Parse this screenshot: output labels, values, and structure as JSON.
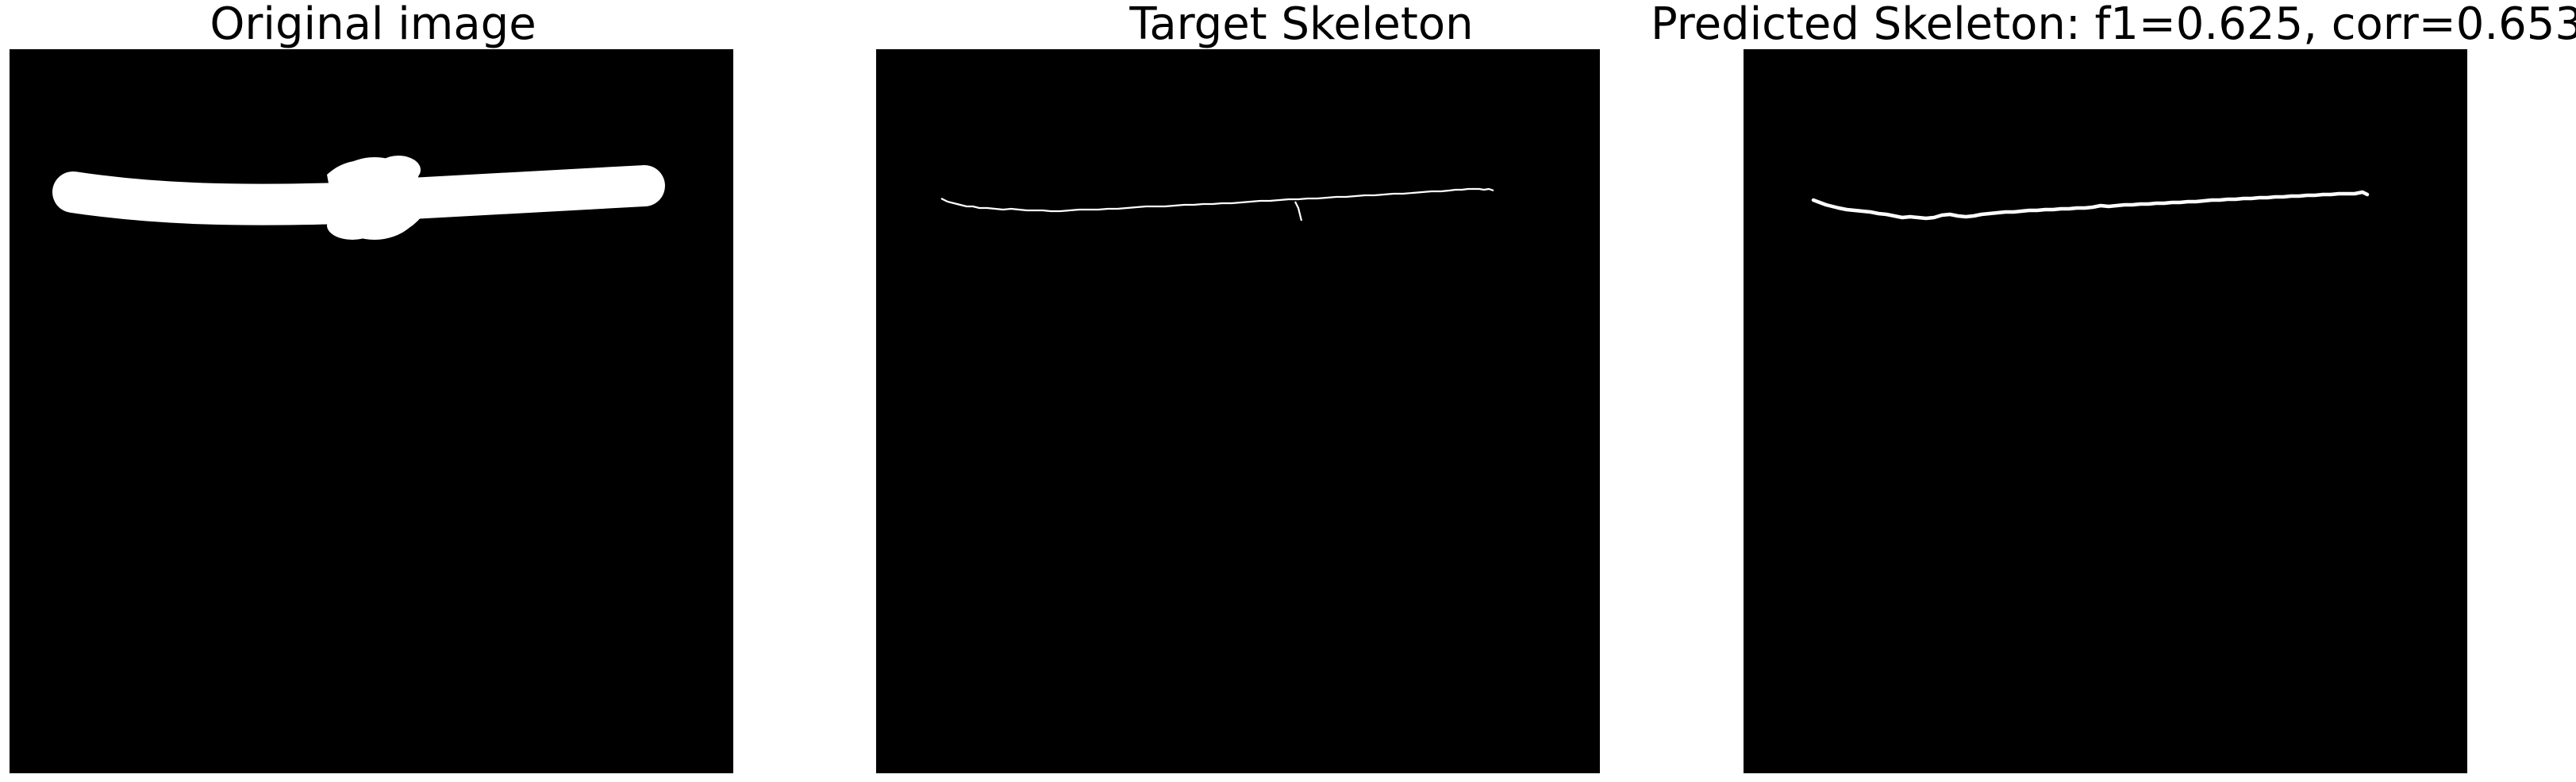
{
  "panels": [
    {
      "title": "Original image"
    },
    {
      "title": "Target Skeleton"
    },
    {
      "title": "Predicted Skeleton: f1=0.625, corr=0.653"
    }
  ]
}
